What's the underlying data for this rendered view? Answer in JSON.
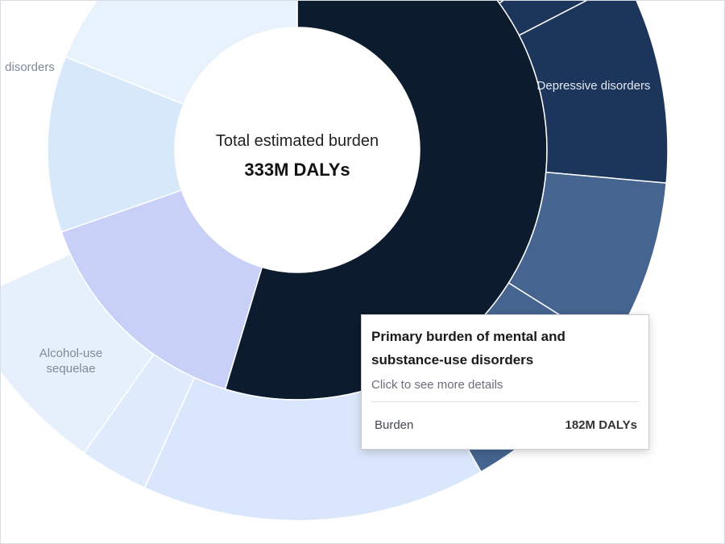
{
  "chart_data": {
    "type": "sunburst",
    "center": {
      "title": "Total estimated burden",
      "value": "333M DALYs"
    },
    "total": 333,
    "unit": "M DALYs",
    "inner_ring": [
      {
        "name": "Primary burden of mental and substance-use disorders",
        "value": 182,
        "color": "#0d1b2e"
      },
      {
        "name": "",
        "value": 50,
        "color": "#c9d0f8"
      },
      {
        "name": "",
        "value": 38,
        "color": "#d6e8fa"
      },
      {
        "name": "",
        "value": 63,
        "color": "#e8f2fc"
      }
    ],
    "outer_ring": [
      {
        "name": "Depressive disorders",
        "value": 42,
        "color": "#1c355a"
      },
      {
        "name": "",
        "value": 3,
        "color": "#1c355a"
      },
      {
        "name": "",
        "value": 5,
        "color": "#1c355a"
      },
      {
        "name": "",
        "value": 8,
        "color": "#1c355a"
      },
      {
        "name": "",
        "value": 30,
        "color": "#1c355a"
      },
      {
        "name": "",
        "value": 25,
        "color": "#45648f"
      },
      {
        "name": "",
        "value": 26,
        "color": "#45648f"
      },
      {
        "name": "Alcohol-use sequelae",
        "value": 50,
        "color": "#dae6fb"
      },
      {
        "name": "",
        "value": 10,
        "color": "#dfeafc"
      },
      {
        "name": "disorders",
        "value": 28,
        "color": "#e6f0fc"
      }
    ]
  },
  "tooltip": {
    "title": "Primary burden of mental and substance-use disorders",
    "hint": "Click to see more details",
    "row_label": "Burden",
    "row_value": "182M DALYs"
  }
}
